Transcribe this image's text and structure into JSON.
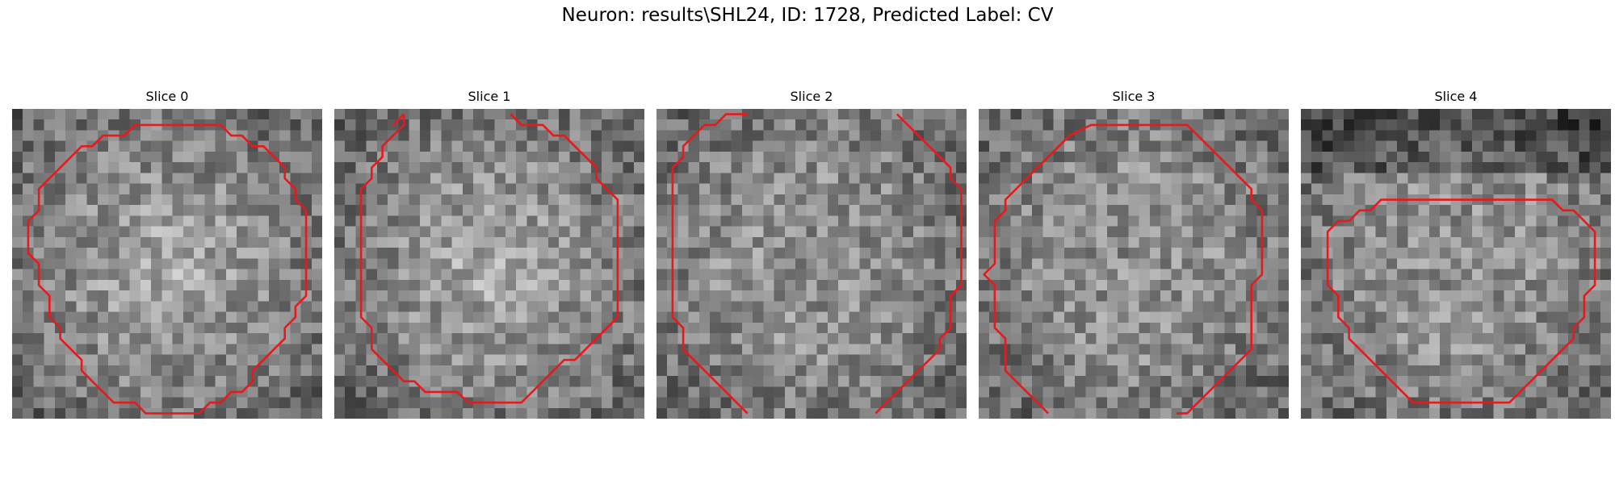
{
  "figure": {
    "title": "Neuron: results\\SHL24, ID: 1728, Predicted Label: CV"
  },
  "colors": {
    "contour": "#e8191c",
    "background": "#ffffff"
  },
  "panels": [
    {
      "label": "Slice 0",
      "texture_seed": 11,
      "contour": [
        [
          12,
          1
        ],
        [
          19,
          1
        ],
        [
          20,
          2
        ],
        [
          21,
          2
        ],
        [
          22,
          3
        ],
        [
          23,
          3
        ],
        [
          24,
          4
        ],
        [
          25,
          5
        ],
        [
          25,
          6
        ],
        [
          26,
          7
        ],
        [
          26,
          8
        ],
        [
          27,
          9
        ],
        [
          27,
          10
        ],
        [
          27,
          15
        ],
        [
          27,
          17
        ],
        [
          26,
          18
        ],
        [
          26,
          19
        ],
        [
          25,
          20
        ],
        [
          25,
          21
        ],
        [
          24,
          22
        ],
        [
          23,
          23
        ],
        [
          22,
          24
        ],
        [
          22,
          25
        ],
        [
          21,
          26
        ],
        [
          20,
          26
        ],
        [
          19,
          27
        ],
        [
          18,
          27
        ],
        [
          17,
          28
        ],
        [
          12,
          28
        ],
        [
          11,
          27
        ],
        [
          9,
          27
        ],
        [
          8,
          26
        ],
        [
          7,
          25
        ],
        [
          6,
          24
        ],
        [
          6,
          23
        ],
        [
          5,
          22
        ],
        [
          4,
          21
        ],
        [
          4,
          20
        ],
        [
          3,
          19
        ],
        [
          3,
          17
        ],
        [
          2,
          16
        ],
        [
          2,
          14
        ],
        [
          1,
          13
        ],
        [
          1,
          10
        ],
        [
          2,
          9
        ],
        [
          2,
          7
        ],
        [
          3,
          6
        ],
        [
          4,
          5
        ],
        [
          5,
          4
        ],
        [
          6,
          3
        ],
        [
          7,
          3
        ],
        [
          8,
          2
        ],
        [
          10,
          2
        ],
        [
          11,
          1
        ],
        [
          12,
          1
        ]
      ],
      "closed": true
    },
    {
      "label": "Slice 1",
      "open_paths": [
        [
          [
            5,
            1
          ],
          [
            6,
            0
          ]
        ],
        [
          [
            16,
            0
          ],
          [
            17,
            1
          ],
          [
            19,
            1
          ],
          [
            20,
            2
          ],
          [
            21,
            2
          ],
          [
            22,
            3
          ],
          [
            23,
            4
          ],
          [
            24,
            5
          ],
          [
            24,
            6
          ],
          [
            25,
            7
          ],
          [
            26,
            8
          ],
          [
            26,
            19
          ],
          [
            25,
            20
          ],
          [
            24,
            21
          ],
          [
            23,
            22
          ],
          [
            22,
            23
          ],
          [
            21,
            23
          ],
          [
            20,
            24
          ],
          [
            19,
            25
          ],
          [
            18,
            26
          ],
          [
            17,
            27
          ],
          [
            12,
            27
          ],
          [
            11,
            26
          ],
          [
            8,
            26
          ],
          [
            7,
            25
          ],
          [
            6,
            25
          ],
          [
            5,
            24
          ],
          [
            4,
            23
          ],
          [
            3,
            22
          ],
          [
            3,
            20
          ],
          [
            2,
            19
          ],
          [
            2,
            7
          ],
          [
            3,
            6
          ],
          [
            3,
            5
          ],
          [
            4,
            4
          ],
          [
            4,
            3
          ],
          [
            5,
            2
          ],
          [
            6,
            1
          ],
          [
            6,
            0
          ]
        ]
      ],
      "texture_seed": 23
    },
    {
      "label": "Slice 2",
      "open_paths": [
        [
          [
            8,
            28
          ],
          [
            7,
            27
          ],
          [
            6,
            26
          ],
          [
            5,
            25
          ],
          [
            4,
            24
          ],
          [
            3,
            23
          ],
          [
            2,
            22
          ],
          [
            2,
            20
          ],
          [
            1,
            19
          ],
          [
            1,
            5
          ],
          [
            2,
            4
          ],
          [
            2,
            3
          ],
          [
            3,
            2
          ],
          [
            4,
            1
          ],
          [
            5,
            1
          ],
          [
            6,
            0
          ],
          [
            8,
            0
          ]
        ],
        [
          [
            22,
            0
          ],
          [
            23,
            1
          ],
          [
            24,
            2
          ],
          [
            25,
            3
          ],
          [
            26,
            4
          ],
          [
            27,
            5
          ],
          [
            27,
            6
          ],
          [
            28,
            7
          ],
          [
            28,
            16
          ],
          [
            27,
            17
          ],
          [
            27,
            20
          ],
          [
            26,
            21
          ],
          [
            26,
            22
          ],
          [
            25,
            23
          ],
          [
            24,
            24
          ],
          [
            23,
            25
          ],
          [
            22,
            26
          ],
          [
            21,
            27
          ],
          [
            20,
            28
          ]
        ]
      ],
      "texture_seed": 37
    },
    {
      "label": "Slice 3",
      "open_paths": [
        [
          [
            6,
            28
          ],
          [
            5,
            27
          ],
          [
            4,
            26
          ],
          [
            3,
            25
          ],
          [
            2,
            24
          ],
          [
            2,
            21
          ],
          [
            1,
            20
          ],
          [
            1,
            16
          ],
          [
            0,
            15
          ],
          [
            1,
            14
          ],
          [
            1,
            10
          ],
          [
            2,
            9
          ],
          [
            2,
            8
          ],
          [
            3,
            7
          ],
          [
            4,
            6
          ],
          [
            5,
            5
          ],
          [
            6,
            4
          ],
          [
            7,
            3
          ],
          [
            8,
            2
          ],
          [
            10,
            1
          ],
          [
            19,
            1
          ],
          [
            20,
            2
          ],
          [
            21,
            3
          ],
          [
            22,
            4
          ],
          [
            23,
            5
          ],
          [
            24,
            6
          ],
          [
            25,
            7
          ],
          [
            25,
            8
          ],
          [
            26,
            9
          ],
          [
            26,
            15
          ],
          [
            25,
            16
          ],
          [
            25,
            22
          ],
          [
            24,
            23
          ],
          [
            23,
            24
          ],
          [
            22,
            25
          ],
          [
            21,
            26
          ],
          [
            20,
            27
          ],
          [
            19,
            28
          ],
          [
            18,
            28
          ]
        ],
        [
          [
            18,
            28
          ],
          [
            19,
            28
          ]
        ]
      ],
      "texture_seed": 51
    },
    {
      "label": "Slice 4",
      "texture_seed": 64,
      "contour": [
        [
          11,
          8
        ],
        [
          23,
          8
        ],
        [
          24,
          9
        ],
        [
          25,
          9
        ],
        [
          26,
          10
        ],
        [
          27,
          11
        ],
        [
          27,
          16
        ],
        [
          26,
          17
        ],
        [
          26,
          19
        ],
        [
          25,
          20
        ],
        [
          25,
          21
        ],
        [
          24,
          22
        ],
        [
          23,
          23
        ],
        [
          22,
          24
        ],
        [
          21,
          25
        ],
        [
          20,
          26
        ],
        [
          19,
          27
        ],
        [
          10,
          27
        ],
        [
          9,
          26
        ],
        [
          8,
          25
        ],
        [
          7,
          24
        ],
        [
          6,
          23
        ],
        [
          5,
          22
        ],
        [
          4,
          21
        ],
        [
          4,
          20
        ],
        [
          3,
          19
        ],
        [
          3,
          17
        ],
        [
          2,
          16
        ],
        [
          2,
          11
        ],
        [
          3,
          10
        ],
        [
          4,
          10
        ],
        [
          5,
          9
        ],
        [
          6,
          9
        ],
        [
          7,
          8
        ],
        [
          11,
          8
        ]
      ],
      "closed": true
    }
  ]
}
